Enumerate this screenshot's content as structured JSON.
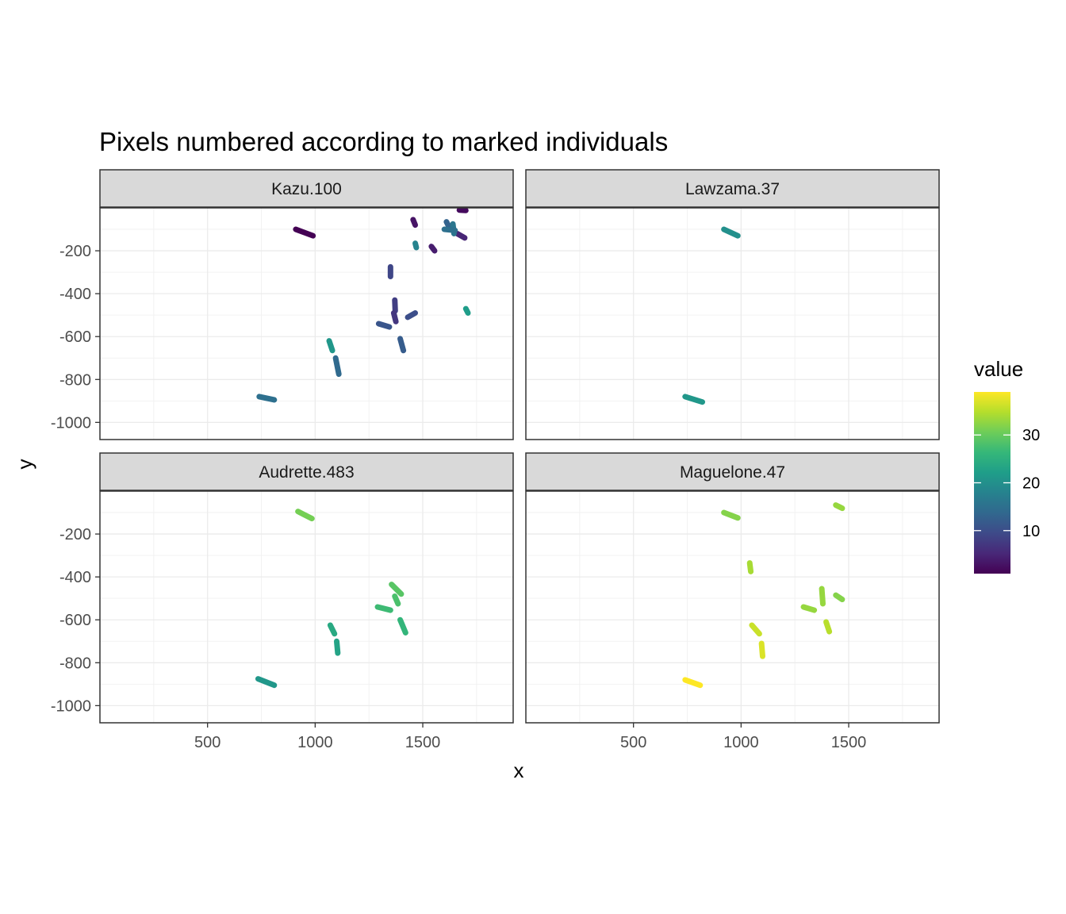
{
  "chart_data": {
    "type": "scatter",
    "title": "Pixels numbered according to marked individuals",
    "xlabel": "x",
    "ylabel": "y",
    "xlim": [
      0,
      1920
    ],
    "ylim": [
      -1080,
      0
    ],
    "x_ticks": [
      500,
      1000,
      1500
    ],
    "y_ticks": [
      -200,
      -400,
      -600,
      -800,
      -1000
    ],
    "grid": true,
    "legend": {
      "title": "value",
      "position": "right",
      "range": [
        1,
        39
      ],
      "ticks": [
        10,
        20,
        30
      ],
      "colors": [
        "#440154",
        "#482878",
        "#3e4a89",
        "#31688e",
        "#26828e",
        "#1f9e89",
        "#35b779",
        "#6dcd59",
        "#b4de2c",
        "#fde725"
      ]
    },
    "panels": [
      {
        "label": "Kazu.100",
        "segments": [
          {
            "x1": 1670,
            "y1": -10,
            "x2": 1700,
            "y2": -12,
            "value": 2
          },
          {
            "x1": 910,
            "y1": -100,
            "x2": 990,
            "y2": -130,
            "value": 1
          },
          {
            "x1": 1455,
            "y1": -55,
            "x2": 1465,
            "y2": -80,
            "value": 3
          },
          {
            "x1": 1540,
            "y1": -180,
            "x2": 1555,
            "y2": -200,
            "value": 4
          },
          {
            "x1": 1660,
            "y1": -120,
            "x2": 1695,
            "y2": -140,
            "value": 5
          },
          {
            "x1": 1350,
            "y1": -275,
            "x2": 1350,
            "y2": -320,
            "value": 9
          },
          {
            "x1": 1370,
            "y1": -430,
            "x2": 1372,
            "y2": -480,
            "value": 8
          },
          {
            "x1": 1365,
            "y1": -490,
            "x2": 1375,
            "y2": -530,
            "value": 7
          },
          {
            "x1": 1430,
            "y1": -510,
            "x2": 1465,
            "y2": -490,
            "value": 10
          },
          {
            "x1": 1295,
            "y1": -540,
            "x2": 1345,
            "y2": -555,
            "value": 11
          },
          {
            "x1": 1395,
            "y1": -610,
            "x2": 1410,
            "y2": -665,
            "value": 12
          },
          {
            "x1": 1610,
            "y1": -65,
            "x2": 1625,
            "y2": -95,
            "value": 13
          },
          {
            "x1": 1640,
            "y1": -75,
            "x2": 1645,
            "y2": -120,
            "value": 16
          },
          {
            "x1": 1600,
            "y1": -100,
            "x2": 1650,
            "y2": -105,
            "value": 15
          },
          {
            "x1": 1095,
            "y1": -700,
            "x2": 1110,
            "y2": -775,
            "value": 14
          },
          {
            "x1": 740,
            "y1": -880,
            "x2": 810,
            "y2": -895,
            "value": 15
          },
          {
            "x1": 1465,
            "y1": -165,
            "x2": 1470,
            "y2": -185,
            "value": 18
          },
          {
            "x1": 1065,
            "y1": -620,
            "x2": 1080,
            "y2": -665,
            "value": 21
          },
          {
            "x1": 1700,
            "y1": -470,
            "x2": 1710,
            "y2": -490,
            "value": 22
          }
        ]
      },
      {
        "label": "Lawzama.37",
        "segments": [
          {
            "x1": 920,
            "y1": -100,
            "x2": 985,
            "y2": -130,
            "value": 20
          },
          {
            "x1": 740,
            "y1": -880,
            "x2": 820,
            "y2": -905,
            "value": 21
          }
        ]
      },
      {
        "label": "Audrette.483",
        "segments": [
          {
            "x1": 920,
            "y1": -95,
            "x2": 985,
            "y2": -128,
            "value": 31
          },
          {
            "x1": 1355,
            "y1": -435,
            "x2": 1400,
            "y2": -480,
            "value": 29
          },
          {
            "x1": 1370,
            "y1": -490,
            "x2": 1385,
            "y2": -525,
            "value": 28
          },
          {
            "x1": 1290,
            "y1": -540,
            "x2": 1350,
            "y2": -555,
            "value": 27
          },
          {
            "x1": 1395,
            "y1": -600,
            "x2": 1420,
            "y2": -660,
            "value": 26
          },
          {
            "x1": 1070,
            "y1": -625,
            "x2": 1090,
            "y2": -665,
            "value": 24
          },
          {
            "x1": 1100,
            "y1": -700,
            "x2": 1105,
            "y2": -755,
            "value": 23
          },
          {
            "x1": 735,
            "y1": -875,
            "x2": 810,
            "y2": -905,
            "value": 21
          }
        ]
      },
      {
        "label": "Maguelone.47",
        "segments": [
          {
            "x1": 920,
            "y1": -100,
            "x2": 985,
            "y2": -125,
            "value": 32
          },
          {
            "x1": 1440,
            "y1": -65,
            "x2": 1470,
            "y2": -80,
            "value": 33
          },
          {
            "x1": 1040,
            "y1": -335,
            "x2": 1045,
            "y2": -375,
            "value": 34
          },
          {
            "x1": 1375,
            "y1": -455,
            "x2": 1380,
            "y2": -525,
            "value": 33
          },
          {
            "x1": 1440,
            "y1": -485,
            "x2": 1470,
            "y2": -505,
            "value": 32
          },
          {
            "x1": 1290,
            "y1": -540,
            "x2": 1340,
            "y2": -555,
            "value": 33
          },
          {
            "x1": 1395,
            "y1": -610,
            "x2": 1410,
            "y2": -655,
            "value": 35
          },
          {
            "x1": 1050,
            "y1": -625,
            "x2": 1085,
            "y2": -665,
            "value": 36
          },
          {
            "x1": 1095,
            "y1": -710,
            "x2": 1100,
            "y2": -770,
            "value": 37
          },
          {
            "x1": 740,
            "y1": -880,
            "x2": 810,
            "y2": -905,
            "value": 39
          }
        ]
      }
    ]
  }
}
